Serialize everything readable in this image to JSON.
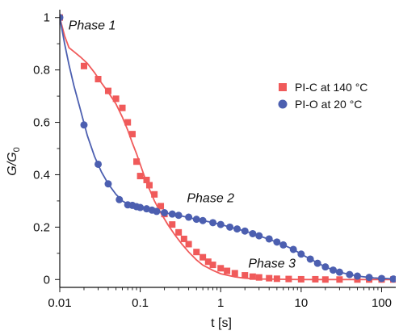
{
  "chart_data": {
    "type": "scatter",
    "title": "",
    "xlabel": "t [s]",
    "ylabel_main": "G/G",
    "ylabel_sub": "0",
    "xscale": "log",
    "xlim": [
      0.01,
      150
    ],
    "ylim": [
      -0.03,
      1.03
    ],
    "xticks": [
      0.01,
      0.1,
      1,
      10,
      100
    ],
    "xtick_labels": [
      "0.01",
      "0.1",
      "1",
      "10",
      "100"
    ],
    "yticks": [
      0,
      0.2,
      0.4,
      0.6,
      0.8,
      1
    ],
    "ytick_labels": [
      "0",
      "0.2",
      "0.4",
      "0.6",
      "0.8",
      "1"
    ],
    "grid": false,
    "legend_position": "right",
    "series": [
      {
        "name": "PI-C at 140 °C",
        "marker": "square",
        "color": "#f05a5a",
        "points": [
          [
            0.01,
            1.0
          ],
          [
            0.02,
            0.815
          ],
          [
            0.03,
            0.765
          ],
          [
            0.04,
            0.72
          ],
          [
            0.05,
            0.69
          ],
          [
            0.06,
            0.655
          ],
          [
            0.07,
            0.6
          ],
          [
            0.08,
            0.555
          ],
          [
            0.09,
            0.45
          ],
          [
            0.1,
            0.395
          ],
          [
            0.12,
            0.38
          ],
          [
            0.13,
            0.36
          ],
          [
            0.15,
            0.325
          ],
          [
            0.18,
            0.28
          ],
          [
            0.2,
            0.25
          ],
          [
            0.25,
            0.21
          ],
          [
            0.3,
            0.18
          ],
          [
            0.35,
            0.155
          ],
          [
            0.4,
            0.135
          ],
          [
            0.5,
            0.105
          ],
          [
            0.6,
            0.085
          ],
          [
            0.7,
            0.068
          ],
          [
            0.8,
            0.056
          ],
          [
            1.0,
            0.043
          ],
          [
            1.2,
            0.033
          ],
          [
            1.5,
            0.024
          ],
          [
            2.0,
            0.016
          ],
          [
            2.5,
            0.011
          ],
          [
            3.0,
            0.008
          ],
          [
            4.0,
            0.005
          ],
          [
            5.0,
            0.003
          ],
          [
            7.0,
            0.002
          ],
          [
            10.0,
            0.001
          ],
          [
            15.0,
            0.001
          ],
          [
            20.0,
            0.0
          ],
          [
            30.0,
            0.0
          ],
          [
            50.0,
            0.0
          ],
          [
            70.0,
            0.0
          ],
          [
            100.0,
            0.0
          ],
          [
            140.0,
            0.0
          ]
        ],
        "fit": [
          [
            0.01,
            1.0
          ],
          [
            0.0115,
            0.93
          ],
          [
            0.013,
            0.885
          ],
          [
            0.015,
            0.87
          ],
          [
            0.018,
            0.85
          ],
          [
            0.022,
            0.825
          ],
          [
            0.027,
            0.79
          ],
          [
            0.033,
            0.75
          ],
          [
            0.04,
            0.715
          ],
          [
            0.05,
            0.67
          ],
          [
            0.06,
            0.62
          ],
          [
            0.07,
            0.57
          ],
          [
            0.08,
            0.52
          ],
          [
            0.09,
            0.48
          ],
          [
            0.1,
            0.44
          ],
          [
            0.12,
            0.37
          ],
          [
            0.15,
            0.3
          ],
          [
            0.18,
            0.255
          ],
          [
            0.22,
            0.21
          ],
          [
            0.27,
            0.17
          ],
          [
            0.33,
            0.135
          ],
          [
            0.4,
            0.105
          ],
          [
            0.5,
            0.075
          ],
          [
            0.6,
            0.055
          ],
          [
            0.8,
            0.035
          ],
          [
            1.0,
            0.022
          ],
          [
            1.5,
            0.01
          ],
          [
            2.0,
            0.005
          ],
          [
            3.0,
            0.002
          ],
          [
            5.0,
            0.001
          ],
          [
            10.0,
            0.0
          ],
          [
            30.0,
            0.0
          ],
          [
            100.0,
            0.0
          ],
          [
            150.0,
            0.0
          ]
        ]
      },
      {
        "name": "PI-O at 20 °C",
        "marker": "circle",
        "color": "#4c5fb0",
        "points": [
          [
            0.01,
            1.0
          ],
          [
            0.02,
            0.59
          ],
          [
            0.03,
            0.44
          ],
          [
            0.04,
            0.365
          ],
          [
            0.055,
            0.305
          ],
          [
            0.07,
            0.285
          ],
          [
            0.08,
            0.283
          ],
          [
            0.09,
            0.278
          ],
          [
            0.1,
            0.275
          ],
          [
            0.12,
            0.27
          ],
          [
            0.14,
            0.265
          ],
          [
            0.16,
            0.26
          ],
          [
            0.2,
            0.255
          ],
          [
            0.25,
            0.25
          ],
          [
            0.3,
            0.245
          ],
          [
            0.4,
            0.238
          ],
          [
            0.5,
            0.23
          ],
          [
            0.6,
            0.225
          ],
          [
            0.8,
            0.217
          ],
          [
            1.0,
            0.21
          ],
          [
            1.3,
            0.2
          ],
          [
            1.6,
            0.193
          ],
          [
            2.0,
            0.185
          ],
          [
            2.5,
            0.175
          ],
          [
            3.0,
            0.167
          ],
          [
            4.0,
            0.155
          ],
          [
            5.0,
            0.143
          ],
          [
            6.0,
            0.132
          ],
          [
            8.0,
            0.115
          ],
          [
            10.0,
            0.097
          ],
          [
            13.0,
            0.078
          ],
          [
            16.0,
            0.062
          ],
          [
            20.0,
            0.048
          ],
          [
            25.0,
            0.036
          ],
          [
            30.0,
            0.028
          ],
          [
            40.0,
            0.019
          ],
          [
            50.0,
            0.013
          ],
          [
            70.0,
            0.008
          ],
          [
            100.0,
            0.004
          ],
          [
            140.0,
            0.002
          ]
        ],
        "fit": [
          [
            0.01,
            1.0
          ],
          [
            0.0115,
            0.9
          ],
          [
            0.013,
            0.82
          ],
          [
            0.015,
            0.74
          ],
          [
            0.018,
            0.65
          ],
          [
            0.022,
            0.55
          ],
          [
            0.027,
            0.47
          ],
          [
            0.033,
            0.41
          ],
          [
            0.04,
            0.365
          ],
          [
            0.05,
            0.325
          ],
          [
            0.06,
            0.3
          ],
          [
            0.07,
            0.288
          ],
          [
            0.08,
            0.282
          ],
          [
            0.1,
            0.275
          ],
          [
            0.15,
            0.263
          ],
          [
            0.2,
            0.255
          ],
          [
            0.3,
            0.245
          ],
          [
            0.5,
            0.23
          ],
          [
            0.8,
            0.217
          ],
          [
            1.0,
            0.21
          ],
          [
            2.0,
            0.185
          ],
          [
            3.0,
            0.167
          ],
          [
            5.0,
            0.143
          ],
          [
            8.0,
            0.115
          ],
          [
            10.0,
            0.097
          ],
          [
            15.0,
            0.068
          ],
          [
            20.0,
            0.048
          ],
          [
            30.0,
            0.028
          ],
          [
            50.0,
            0.013
          ],
          [
            80.0,
            0.006
          ],
          [
            150.0,
            0.002
          ]
        ]
      }
    ],
    "annotations": [
      {
        "text": "Phase 1",
        "x": 0.0128,
        "y": 0.955
      },
      {
        "text": "Phase 2",
        "x": 0.38,
        "y": 0.295
      },
      {
        "text": "Phase 3",
        "x": 2.2,
        "y": 0.045
      }
    ]
  }
}
